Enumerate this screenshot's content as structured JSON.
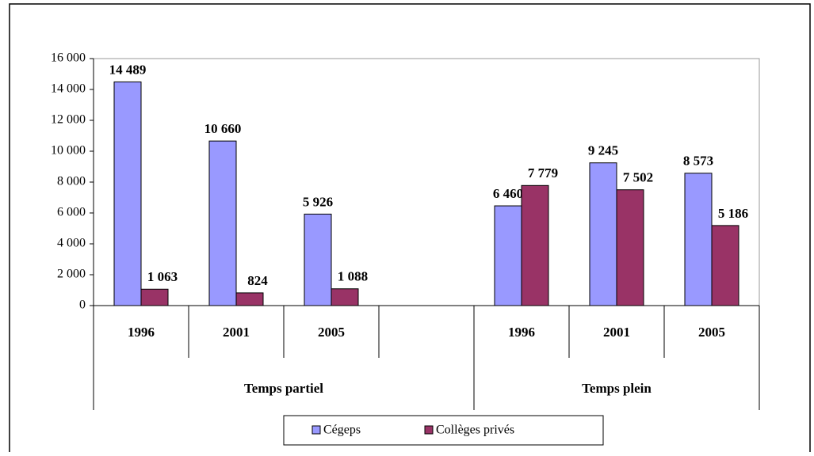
{
  "chart_data": {
    "type": "bar",
    "categories": [
      "1996",
      "2001",
      "2005",
      null,
      "1996",
      "2001",
      "2005"
    ],
    "groups": [
      {
        "name": "Temps partiel",
        "count": 4
      },
      {
        "name": "Temps plein",
        "count": 3
      }
    ],
    "series": [
      {
        "name": "Cégeps",
        "color": "#9999ff",
        "values": [
          14489,
          10660,
          5926,
          null,
          6460,
          9245,
          8573
        ],
        "value_labels": [
          "14 489",
          "10 660",
          "5 926",
          null,
          "6 460",
          "9 245",
          "8 573"
        ]
      },
      {
        "name": "Collèges privés",
        "color": "#993366",
        "values": [
          1063,
          824,
          1088,
          null,
          7779,
          7502,
          5186
        ],
        "value_labels": [
          "1 063",
          "824",
          "1 088",
          null,
          "7 779",
          "7 502",
          "5 186"
        ]
      }
    ],
    "ylim": [
      0,
      16000
    ],
    "yticks": [
      0,
      {
        "value": 2000,
        "label": "2 000"
      },
      {
        "value": 4000,
        "label": "4 000"
      },
      {
        "value": 6000,
        "label": "6 000"
      },
      {
        "value": 8000,
        "label": "8 000"
      },
      {
        "value": 10000,
        "label": "10 000"
      },
      {
        "value": 12000,
        "label": "12 000"
      },
      {
        "value": 14000,
        "label": "14 000"
      },
      {
        "value": 16000,
        "label": "16 000"
      }
    ],
    "grid": false,
    "legend": "bottom"
  }
}
